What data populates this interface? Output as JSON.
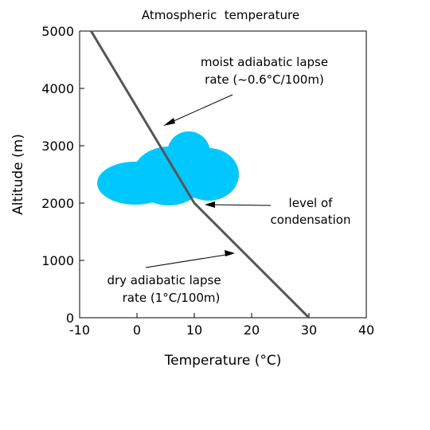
{
  "chart_data": {
    "type": "line",
    "title": "Atmospheric  temperature",
    "xlabel": "Temperature (°C)",
    "ylabel": "Altitude (m)",
    "xlim": [
      -10,
      40
    ],
    "ylim": [
      0,
      5000
    ],
    "x_ticks": [
      -10,
      0,
      10,
      20,
      30,
      40
    ],
    "y_ticks": [
      0,
      1000,
      2000,
      3000,
      4000,
      5000
    ],
    "x_tick_labels": [
      "-10",
      "0",
      "10",
      "20",
      "30",
      "40"
    ],
    "y_tick_labels": [
      "0",
      "1000",
      "2000",
      "3000",
      "4000",
      "5000"
    ],
    "grid": false,
    "series": [
      {
        "points": [
          {
            "x": 30,
            "y": 0
          },
          {
            "x": 10,
            "y": 2000
          },
          {
            "x": -8,
            "y": 5000
          }
        ],
        "color": "#555555"
      }
    ],
    "annotations": {
      "moist": {
        "line1": "moist adiabatic lapse",
        "line2": "rate (~0.6°C/100m)"
      },
      "condensation": {
        "line1": "level of",
        "line2": "condensation"
      },
      "dry": {
        "line1": "dry adiabatic lapse",
        "line2": "rate (1°C/100m)"
      }
    },
    "cloud_color": "#00c8ff"
  }
}
